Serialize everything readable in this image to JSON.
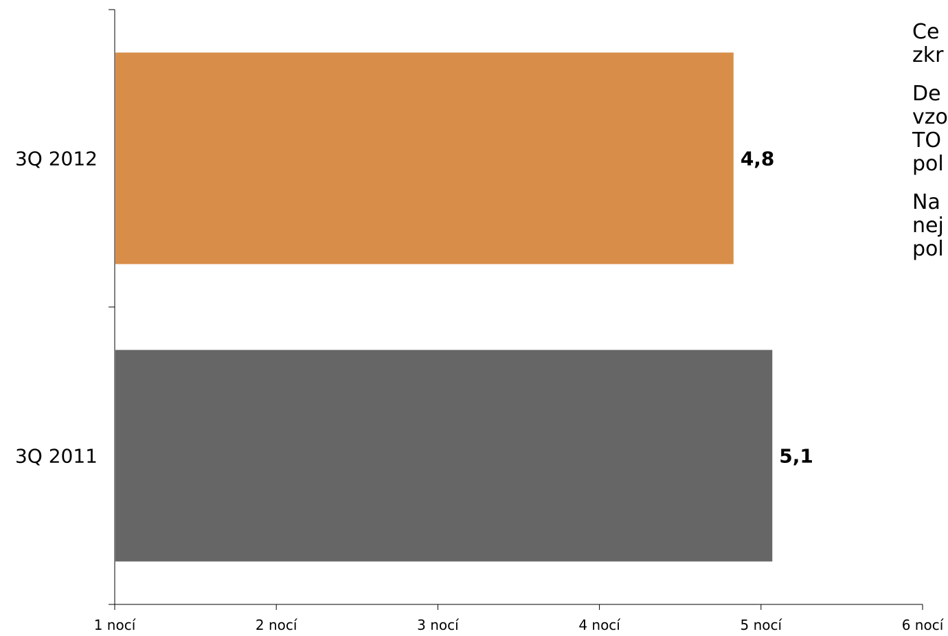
{
  "chart_data": {
    "type": "bar",
    "orientation": "horizontal",
    "categories": [
      "3Q 2012",
      "3Q 2011"
    ],
    "values": [
      4.83,
      5.07
    ],
    "data_labels": [
      "4,8",
      "5,1"
    ],
    "colors": [
      "#D88E48",
      "#666666"
    ],
    "x_ticks": [
      "1 nocí",
      "2 nocí",
      "3 nocí",
      "4 nocí",
      "5 nocí",
      "6 nocí"
    ],
    "xlim": [
      1,
      6
    ],
    "grid": false,
    "legend": "none"
  },
  "side_text": [
    [
      "Ce",
      "zkr"
    ],
    [
      "De",
      "vzo",
      "TO",
      "pol"
    ],
    [
      "Na",
      "nej",
      "pol"
    ]
  ]
}
